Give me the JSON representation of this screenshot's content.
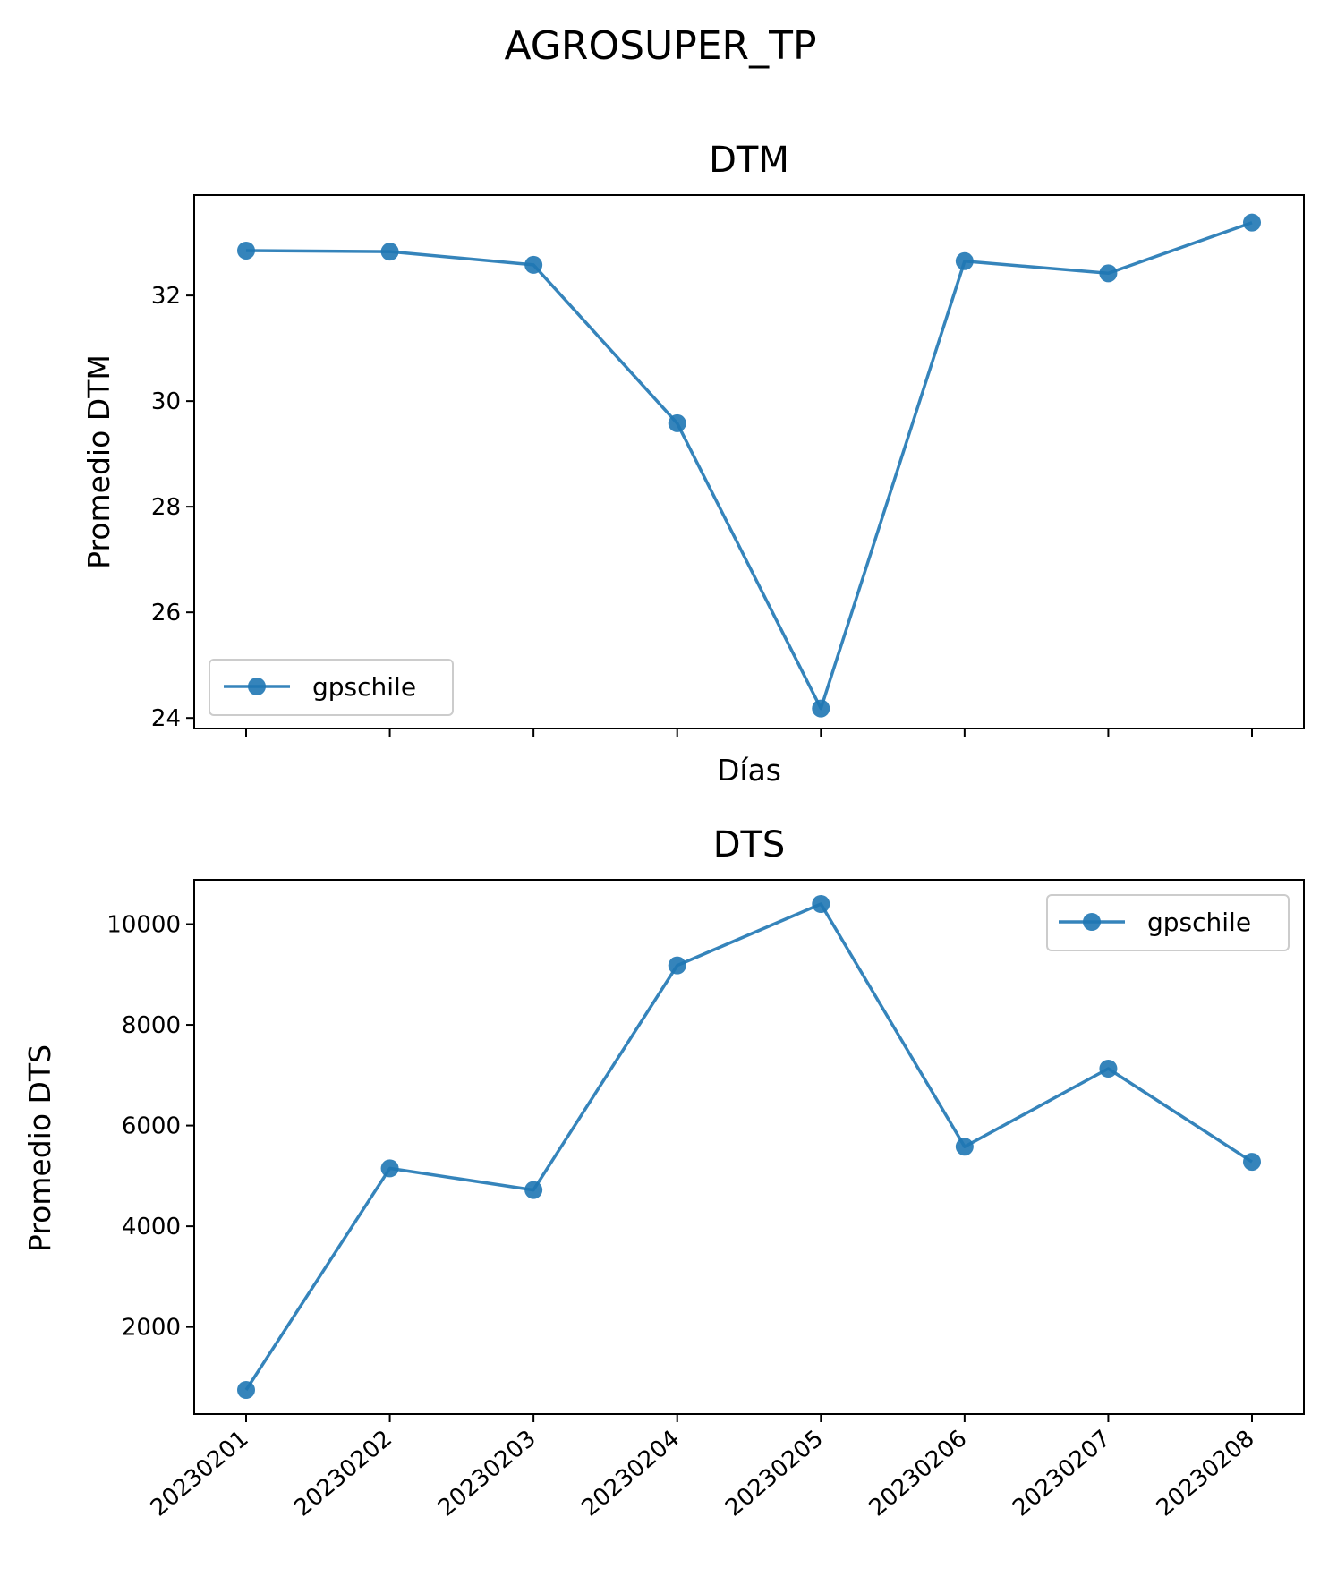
{
  "figure": {
    "title": "AGROSUPER_TP"
  },
  "colors": {
    "series": "#1f77b4"
  },
  "chart_data": [
    {
      "type": "line",
      "title": "DTM",
      "xlabel": "Días",
      "ylabel": "Promedio DTM",
      "categories": [
        "20230201",
        "20230202",
        "20230203",
        "20230204",
        "20230205",
        "20230206",
        "20230207",
        "20230208"
      ],
      "show_x_tick_labels": false,
      "ylim": [
        23.8,
        33.9
      ],
      "yticks": [
        24,
        26,
        28,
        30,
        32
      ],
      "grid": false,
      "legend": {
        "position": "lower left",
        "entries": [
          "gpschile"
        ]
      },
      "series": [
        {
          "name": "gpschile",
          "values": [
            32.85,
            32.83,
            32.58,
            29.58,
            24.18,
            32.65,
            32.42,
            33.38
          ]
        }
      ]
    },
    {
      "type": "line",
      "title": "DTS",
      "xlabel": "",
      "ylabel": "Promedio DTS",
      "categories": [
        "20230201",
        "20230202",
        "20230203",
        "20230204",
        "20230205",
        "20230206",
        "20230207",
        "20230208"
      ],
      "show_x_tick_labels": true,
      "ylim": [
        270,
        10880
      ],
      "yticks": [
        2000,
        4000,
        6000,
        8000,
        10000
      ],
      "grid": false,
      "legend": {
        "position": "upper right",
        "entries": [
          "gpschile"
        ]
      },
      "series": [
        {
          "name": "gpschile",
          "values": [
            750,
            5150,
            4720,
            9180,
            10400,
            5580,
            7130,
            5280
          ]
        }
      ]
    }
  ]
}
